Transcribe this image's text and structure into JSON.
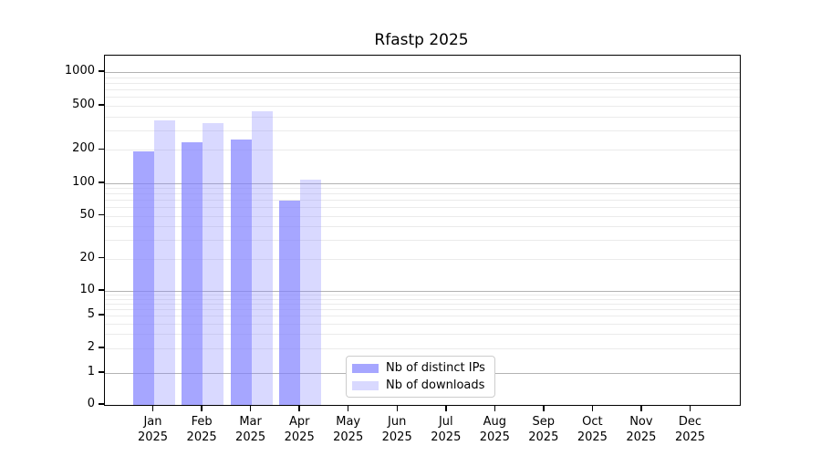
{
  "chart_data": {
    "type": "bar",
    "title": "Rfastp 2025",
    "categories": [
      "Jan",
      "Feb",
      "Mar",
      "Apr",
      "May",
      "Jun",
      "Jul",
      "Aug",
      "Sep",
      "Oct",
      "Nov",
      "Dec"
    ],
    "year": "2025",
    "series": [
      {
        "name": "Nb of distinct IPs",
        "color": "rgba(128,128,255,0.7)",
        "values": [
          195,
          235,
          249,
          69,
          0,
          0,
          0,
          0,
          0,
          0,
          0,
          0
        ]
      },
      {
        "name": "Nb of downloads",
        "color": "rgba(128,128,255,0.3)",
        "values": [
          370,
          350,
          444,
          107,
          0,
          0,
          0,
          0,
          0,
          0,
          0,
          0
        ]
      }
    ],
    "y_ticks": [
      0,
      1,
      2,
      5,
      10,
      20,
      50,
      100,
      200,
      500,
      1000
    ],
    "yscale": "log",
    "ylim": [
      0,
      1400
    ],
    "grid": true,
    "legend_position": "inside-bottom-center",
    "colors": {
      "major_grid": "#b3b3b3",
      "minor_grid": "#ebebeb",
      "axis": "#000000",
      "background": "#ffffff"
    }
  }
}
